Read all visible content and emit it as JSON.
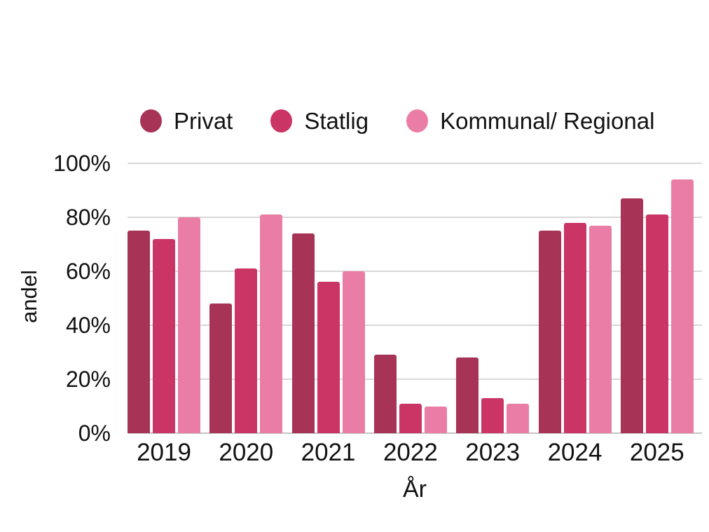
{
  "legend": {
    "items": [
      {
        "label": "Privat",
        "color": "#a73357"
      },
      {
        "label": "Statlig",
        "color": "#ca3566"
      },
      {
        "label": "Kommunal/ Regional",
        "color": "#ea7da5"
      }
    ]
  },
  "axes": {
    "y_label": "andel",
    "x_label": "År",
    "y_ticks": [
      "100%",
      "80%",
      "60%",
      "40%",
      "20%",
      "0%"
    ]
  },
  "chart_data": {
    "type": "bar",
    "title": "",
    "categories": [
      "2019",
      "2020",
      "2021",
      "2022",
      "2023",
      "2024",
      "2025"
    ],
    "series": [
      {
        "name": "Privat",
        "color": "#a73357",
        "values": [
          75,
          48,
          74,
          29,
          28,
          75,
          87
        ]
      },
      {
        "name": "Statlig",
        "color": "#ca3566",
        "values": [
          72,
          61,
          56,
          11,
          13,
          78,
          81
        ]
      },
      {
        "name": "Kommunal/ Regional",
        "color": "#ea7da5",
        "values": [
          80,
          81,
          60,
          10,
          11,
          77,
          94
        ]
      }
    ],
    "xlabel": "År",
    "ylabel": "andel",
    "ylim": [
      0,
      100
    ],
    "y_tick_step": 20,
    "grid": true,
    "legend_position": "top"
  },
  "colors": {
    "background": "#ffffff",
    "grid": "#d8d8d8",
    "axis_line": "#c4c4c4",
    "text": "#121212"
  }
}
